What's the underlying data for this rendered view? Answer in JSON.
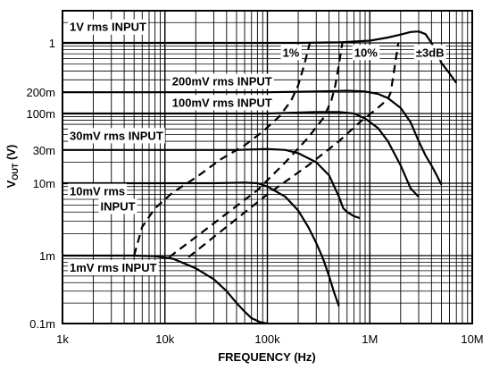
{
  "chart_data": {
    "type": "line",
    "title": "",
    "xlabel": "FREQUENCY (Hz)",
    "ylabel_main": "V",
    "ylabel_sub": "OUT",
    "ylabel_unit": " (V)",
    "x_scale": "log",
    "y_scale": "log",
    "xlim": [
      1000,
      10000000
    ],
    "ylim": [
      0.0001,
      3
    ],
    "grid": true,
    "x_tick_labels": [
      {
        "value": 1000,
        "label": "1k"
      },
      {
        "value": 10000,
        "label": "10k"
      },
      {
        "value": 100000,
        "label": "100k"
      },
      {
        "value": 1000000,
        "label": "1M"
      },
      {
        "value": 10000000,
        "label": "10M"
      }
    ],
    "y_tick_labels": [
      {
        "value": 1,
        "label": "1"
      },
      {
        "value": 0.2,
        "label": "200m"
      },
      {
        "value": 0.1,
        "label": "100m"
      },
      {
        "value": 0.03,
        "label": "30m"
      },
      {
        "value": 0.01,
        "label": "10m"
      },
      {
        "value": 0.001,
        "label": "1m"
      },
      {
        "value": 0.0001,
        "label": "0.1m"
      }
    ],
    "series": [
      {
        "name": "1V rms INPUT",
        "style": "solid",
        "points": [
          [
            1000,
            1.0
          ],
          [
            200000,
            1.0
          ],
          [
            500000,
            1.02
          ],
          [
            1000000,
            1.08
          ],
          [
            1500000,
            1.2
          ],
          [
            2000000,
            1.33
          ],
          [
            2500000,
            1.45
          ],
          [
            3000000,
            1.48
          ],
          [
            3500000,
            1.35
          ],
          [
            4000000,
            1.0
          ],
          [
            4500000,
            0.72
          ],
          [
            5000000,
            0.52
          ],
          [
            6000000,
            0.37
          ],
          [
            7000000,
            0.27
          ]
        ]
      },
      {
        "name": "200mV rms INPUT",
        "style": "solid",
        "points": [
          [
            1000,
            0.2
          ],
          [
            100000,
            0.2
          ],
          [
            300000,
            0.205
          ],
          [
            600000,
            0.21
          ],
          [
            900000,
            0.205
          ],
          [
            1200000,
            0.19
          ],
          [
            1500000,
            0.165
          ],
          [
            2000000,
            0.12
          ],
          [
            2500000,
            0.075
          ],
          [
            3000000,
            0.04
          ],
          [
            3500000,
            0.025
          ],
          [
            4000000,
            0.018
          ],
          [
            4500000,
            0.013
          ],
          [
            5000000,
            0.0095
          ]
        ]
      },
      {
        "name": "100mV rms INPUT",
        "style": "solid",
        "points": [
          [
            1000,
            0.1
          ],
          [
            100000,
            0.1
          ],
          [
            300000,
            0.105
          ],
          [
            500000,
            0.105
          ],
          [
            700000,
            0.1
          ],
          [
            900000,
            0.085
          ],
          [
            1200000,
            0.062
          ],
          [
            1500000,
            0.04
          ],
          [
            2000000,
            0.018
          ],
          [
            2500000,
            0.0085
          ],
          [
            3000000,
            0.0065
          ]
        ]
      },
      {
        "name": "30mV rms INPUT",
        "style": "solid",
        "points": [
          [
            1000,
            0.03
          ],
          [
            50000,
            0.03
          ],
          [
            100000,
            0.031
          ],
          [
            150000,
            0.03
          ],
          [
            200000,
            0.027
          ],
          [
            300000,
            0.02
          ],
          [
            400000,
            0.013
          ],
          [
            500000,
            0.0065
          ],
          [
            550000,
            0.0045
          ],
          [
            600000,
            0.004
          ],
          [
            700000,
            0.0035
          ],
          [
            800000,
            0.0033
          ]
        ]
      },
      {
        "name": "10mV rms INPUT",
        "style": "solid",
        "points": [
          [
            1000,
            0.01
          ],
          [
            30000,
            0.01
          ],
          [
            60000,
            0.0102
          ],
          [
            80000,
            0.01
          ],
          [
            100000,
            0.009
          ],
          [
            150000,
            0.0065
          ],
          [
            200000,
            0.0042
          ],
          [
            250000,
            0.0025
          ],
          [
            300000,
            0.0015
          ],
          [
            350000,
            0.0009
          ],
          [
            400000,
            0.0005
          ],
          [
            450000,
            0.00028
          ],
          [
            500000,
            0.00018
          ]
        ]
      },
      {
        "name": "1mV rms INPUT",
        "style": "solid",
        "points": [
          [
            1000,
            0.001
          ],
          [
            5000,
            0.001
          ],
          [
            8000,
            0.00098
          ],
          [
            12000,
            0.0009
          ],
          [
            20000,
            0.00065
          ],
          [
            30000,
            0.00045
          ],
          [
            40000,
            0.0003
          ],
          [
            50000,
            0.0002
          ],
          [
            60000,
            0.00015
          ],
          [
            70000,
            0.00012
          ],
          [
            85000,
            0.000105
          ],
          [
            100000,
            0.0001
          ]
        ]
      },
      {
        "name": "1%",
        "style": "dashed",
        "points": [
          [
            5000,
            0.001
          ],
          [
            6000,
            0.0025
          ],
          [
            8000,
            0.0045
          ],
          [
            12000,
            0.0075
          ],
          [
            20000,
            0.012
          ],
          [
            35000,
            0.022
          ],
          [
            60000,
            0.035
          ],
          [
            90000,
            0.055
          ],
          [
            130000,
            0.09
          ],
          [
            170000,
            0.15
          ],
          [
            200000,
            0.25
          ],
          [
            230000,
            0.5
          ],
          [
            260000,
            1.0
          ]
        ]
      },
      {
        "name": "10%",
        "style": "dashed",
        "points": [
          [
            11000,
            0.00095
          ],
          [
            20000,
            0.0018
          ],
          [
            40000,
            0.0038
          ],
          [
            80000,
            0.008
          ],
          [
            150000,
            0.02
          ],
          [
            250000,
            0.045
          ],
          [
            350000,
            0.085
          ],
          [
            420000,
            0.15
          ],
          [
            460000,
            0.25
          ],
          [
            500000,
            0.5
          ],
          [
            540000,
            1.0
          ]
        ]
      },
      {
        "name": "±3dB",
        "style": "dashed",
        "points": [
          [
            17000,
            0.00095
          ],
          [
            40000,
            0.0025
          ],
          [
            100000,
            0.007
          ],
          [
            250000,
            0.018
          ],
          [
            500000,
            0.04
          ],
          [
            800000,
            0.075
          ],
          [
            1200000,
            0.12
          ],
          [
            1500000,
            0.16
          ],
          [
            1600000,
            0.2
          ],
          [
            1700000,
            0.35
          ],
          [
            1800000,
            0.6
          ],
          [
            1900000,
            1.0
          ]
        ]
      }
    ],
    "curve_labels": [
      {
        "text": "1V rms INPUT",
        "x": 1000,
        "y": 1.5
      },
      {
        "text": "200mV rms INPUT",
        "x": 10000,
        "y": 0.25
      },
      {
        "text": "100mV rms INPUT",
        "x": 10000,
        "y": 0.125
      },
      {
        "text": "30mV rms INPUT",
        "x": 1000,
        "y": 0.042
      },
      {
        "text": "10mV rms",
        "x": 1000,
        "y": 0.0068
      },
      {
        "text": "INPUT",
        "x": 2000,
        "y": 0.0042
      },
      {
        "text": "1mV rms INPUT",
        "x": 1000,
        "y": 0.00058
      },
      {
        "text": "1%",
        "x": 120000,
        "y": 0.64
      },
      {
        "text": "10%",
        "x": 600000,
        "y": 0.64
      },
      {
        "text": "±3dB",
        "x": 2400000,
        "y": 0.64
      }
    ]
  }
}
